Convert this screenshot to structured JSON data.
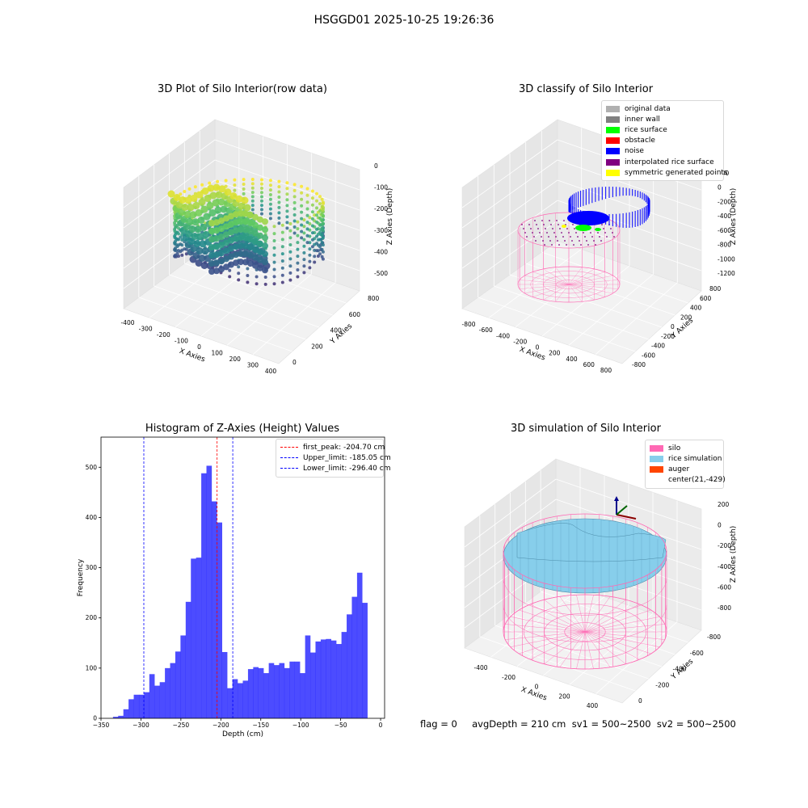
{
  "suptitle": "HSGGD01 2025-10-25 19:26:36",
  "footer": "flag = 0     avgDepth = 210 cm  sv1 = 500~2500  sv2 = 500~2500",
  "chart_data": [
    {
      "type": "scatter",
      "title": "3D Plot of Silo Interior(row data)",
      "xlabel": "X Axies",
      "ylabel": "Y Axies",
      "zlabel": "Z Axies (Depth)",
      "x_ticks": [
        "-400",
        "-300",
        "-200",
        "-100",
        "0",
        "100",
        "200",
        "300",
        "400"
      ],
      "y_ticks": [
        "0",
        "200",
        "400",
        "600",
        "800"
      ],
      "z_ticks": [
        "0",
        "-100",
        "-200",
        "-300",
        "-400",
        "-500"
      ],
      "colormap": "viridis",
      "grid": true
    },
    {
      "type": "scatter",
      "title": "3D classify of Silo Interior",
      "xlabel": "X Axies",
      "ylabel": "Y Axies",
      "zlabel": "Z Axies (Depth)",
      "x_ticks": [
        "-800",
        "-600",
        "-400",
        "-200",
        "0",
        "200",
        "400",
        "600",
        "800"
      ],
      "y_ticks": [
        "-800",
        "-600",
        "-400",
        "-200",
        "0",
        "200",
        "400",
        "600",
        "800"
      ],
      "z_ticks": [
        "200",
        "0",
        "-200",
        "-400",
        "-600",
        "-800",
        "-1000",
        "-1200"
      ],
      "legend_position": "top-right",
      "legend": [
        {
          "label": "original data",
          "color": "#b0b0b0"
        },
        {
          "label": "inner wall",
          "color": "#808080"
        },
        {
          "label": "rice surface",
          "color": "#00ff00"
        },
        {
          "label": "obstacle",
          "color": "#ff0000"
        },
        {
          "label": "noise",
          "color": "#0000ff"
        },
        {
          "label": "interpolated rice surface",
          "color": "#800080"
        },
        {
          "label": "symmetric generated points",
          "color": "#ffff00"
        }
      ],
      "grid": true
    },
    {
      "type": "bar",
      "title": "Histogram of Z-Axies (Height) Values",
      "xlabel": "Depth (cm)",
      "ylabel": "Frequency",
      "xlim": [
        -350,
        5
      ],
      "ylim": [
        0,
        560
      ],
      "x_ticks": [
        "−350",
        "−300",
        "−250",
        "−200",
        "−150",
        "−100",
        "−50",
        "0"
      ],
      "y_ticks": [
        "0",
        "100",
        "200",
        "300",
        "400",
        "500"
      ],
      "bin_start": -335,
      "bin_width": 6.5,
      "values": [
        3,
        5,
        18,
        38,
        47,
        47,
        52,
        88,
        65,
        72,
        100,
        110,
        133,
        165,
        232,
        318,
        320,
        488,
        503,
        432,
        390,
        132,
        60,
        78,
        70,
        75,
        98,
        102,
        100,
        90,
        110,
        106,
        110,
        100,
        113,
        113,
        90,
        165,
        131,
        153,
        157,
        158,
        155,
        148,
        172,
        207,
        242,
        290,
        230
      ],
      "bar_color": "#0000ff",
      "lines": [
        {
          "label": "first_peak: -204.70 cm",
          "x": -204.7,
          "color": "#ff0000"
        },
        {
          "label": "Upper_limit: -185.05 cm",
          "x": -185.05,
          "color": "#0000ff"
        },
        {
          "label": "Lower_limit: -296.40 cm",
          "x": -296.4,
          "color": "#0000ff"
        }
      ],
      "legend_position": "top-right"
    },
    {
      "type": "scatter",
      "title": "3D simulation of Silo Interior",
      "xlabel": "X Axies",
      "ylabel": "Y Axies",
      "zlabel": "Z Axies (Depth)",
      "x_ticks": [
        "-400",
        "-200",
        "0",
        "200",
        "400"
      ],
      "y_ticks": [
        "0",
        "-200",
        "-400",
        "-600",
        "-800"
      ],
      "z_ticks": [
        "200",
        "0",
        "-200",
        "-400",
        "-600",
        "-800"
      ],
      "legend_position": "top-right",
      "legend": [
        {
          "label": "silo",
          "color": "#ff69b4"
        },
        {
          "label": "rice simulation",
          "color": "#87ceeb"
        },
        {
          "label": "auger",
          "color": "#ff4500"
        },
        {
          "label": "center(21,-429)",
          "color": ""
        }
      ],
      "grid": true
    }
  ]
}
